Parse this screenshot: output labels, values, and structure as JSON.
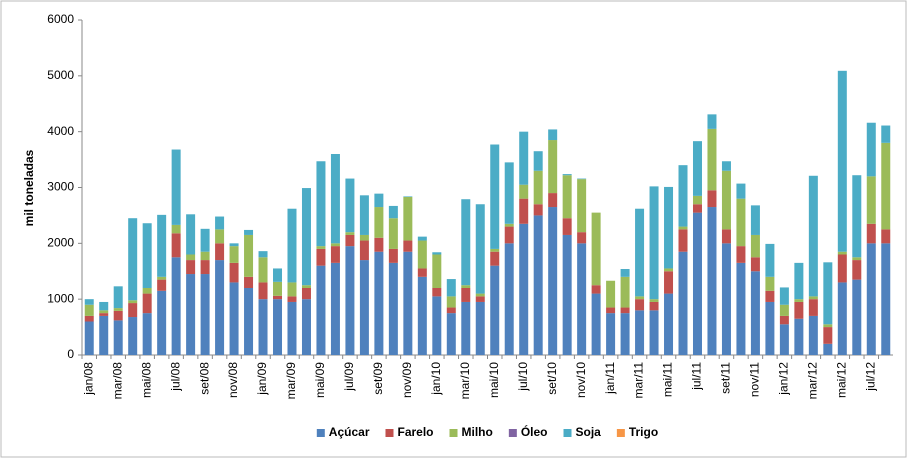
{
  "chart_data": {
    "type": "stacked-bar",
    "y_label": "mil toneladas",
    "categories": [
      "jan/08",
      null,
      "mar/08",
      null,
      "mai/08",
      null,
      "jul/08",
      null,
      "set/08",
      null,
      "nov/08",
      null,
      "jan/09",
      null,
      "mar/09",
      null,
      "mai/09",
      null,
      "jul/09",
      null,
      "set/09",
      null,
      "nov/09",
      null,
      "jan/10",
      null,
      "mar/10",
      null,
      "mai/10",
      null,
      "jul/10",
      null,
      "set/10",
      null,
      "nov/10",
      null,
      "jan/11",
      null,
      "mar/11",
      null,
      "mai/11",
      null,
      "jul/11",
      null,
      "set/11",
      null,
      "nov/11",
      null,
      "jan/12",
      null,
      "mar/12",
      null,
      "mai/12",
      null,
      "jul/12",
      null
    ],
    "ylim": [
      0,
      6000
    ],
    "yticks": [
      0,
      1000,
      2000,
      3000,
      4000,
      5000,
      6000
    ],
    "grid": false,
    "legend": "bottom",
    "series": [
      {
        "name": "Açúcar",
        "color": "#4f81bd",
        "values": [
          600,
          700,
          620,
          680,
          750,
          1150,
          1750,
          1450,
          1450,
          1700,
          1300,
          1200,
          1000,
          1000,
          950,
          1000,
          1600,
          1650,
          1950,
          1700,
          1850,
          1650,
          1850,
          1400,
          1050,
          750,
          950,
          950,
          1600,
          2000,
          2350,
          2500,
          2650,
          2150,
          2000,
          1100,
          750,
          750,
          800,
          800,
          1100,
          1850,
          2550,
          2650,
          2000,
          1650,
          1500,
          950,
          550,
          650,
          700,
          200,
          1300,
          1350,
          2000,
          2000
        ]
      },
      {
        "name": "Farelo",
        "color": "#c0504d",
        "values": [
          100,
          50,
          170,
          250,
          350,
          200,
          430,
          250,
          250,
          300,
          350,
          200,
          300,
          60,
          100,
          200,
          300,
          300,
          200,
          350,
          250,
          250,
          200,
          150,
          150,
          100,
          250,
          100,
          250,
          300,
          450,
          200,
          250,
          300,
          200,
          150,
          100,
          100,
          200,
          150,
          400,
          400,
          150,
          300,
          250,
          300,
          250,
          200,
          150,
          300,
          300,
          300,
          500,
          350,
          350,
          250
        ]
      },
      {
        "name": "Milho",
        "color": "#9bbb59",
        "values": [
          200,
          50,
          50,
          50,
          100,
          50,
          150,
          100,
          150,
          250,
          300,
          750,
          450,
          250,
          250,
          50,
          50,
          50,
          50,
          100,
          550,
          550,
          780,
          500,
          600,
          200,
          50,
          50,
          50,
          50,
          250,
          600,
          950,
          770,
          950,
          1300,
          480,
          550,
          50,
          50,
          50,
          50,
          150,
          1100,
          1050,
          850,
          400,
          250,
          200,
          50,
          50,
          50,
          50,
          50,
          850,
          1550
        ]
      },
      {
        "name": "Óleo",
        "color": "#8064a2",
        "values": [
          0,
          0,
          0,
          0,
          0,
          0,
          0,
          0,
          0,
          0,
          0,
          0,
          0,
          0,
          0,
          0,
          0,
          0,
          0,
          0,
          0,
          0,
          0,
          0,
          0,
          0,
          0,
          0,
          0,
          0,
          0,
          0,
          0,
          0,
          0,
          0,
          0,
          0,
          0,
          0,
          0,
          0,
          0,
          0,
          0,
          0,
          0,
          0,
          0,
          0,
          0,
          0,
          0,
          0,
          0,
          0
        ]
      },
      {
        "name": "Soja",
        "color": "#4bacc6",
        "values": [
          100,
          150,
          390,
          1470,
          1160,
          1110,
          1350,
          720,
          410,
          230,
          50,
          90,
          110,
          240,
          1320,
          1740,
          1520,
          1600,
          960,
          710,
          240,
          220,
          10,
          70,
          40,
          310,
          1540,
          1600,
          1870,
          1100,
          950,
          350,
          190,
          20,
          10,
          0,
          0,
          140,
          1570,
          2020,
          1460,
          1100,
          980,
          260,
          170,
          270,
          530,
          590,
          310,
          650,
          2160,
          1110,
          3240,
          1470,
          960,
          310
        ]
      },
      {
        "name": "Trigo",
        "color": "#f79646",
        "values": [
          0,
          0,
          0,
          0,
          0,
          0,
          0,
          0,
          0,
          0,
          0,
          0,
          0,
          0,
          0,
          0,
          0,
          0,
          0,
          0,
          0,
          0,
          0,
          0,
          0,
          0,
          0,
          0,
          0,
          0,
          0,
          0,
          0,
          0,
          0,
          0,
          0,
          0,
          0,
          0,
          0,
          0,
          0,
          0,
          0,
          0,
          0,
          0,
          0,
          0,
          0,
          0,
          0,
          0,
          0,
          0
        ]
      }
    ]
  }
}
